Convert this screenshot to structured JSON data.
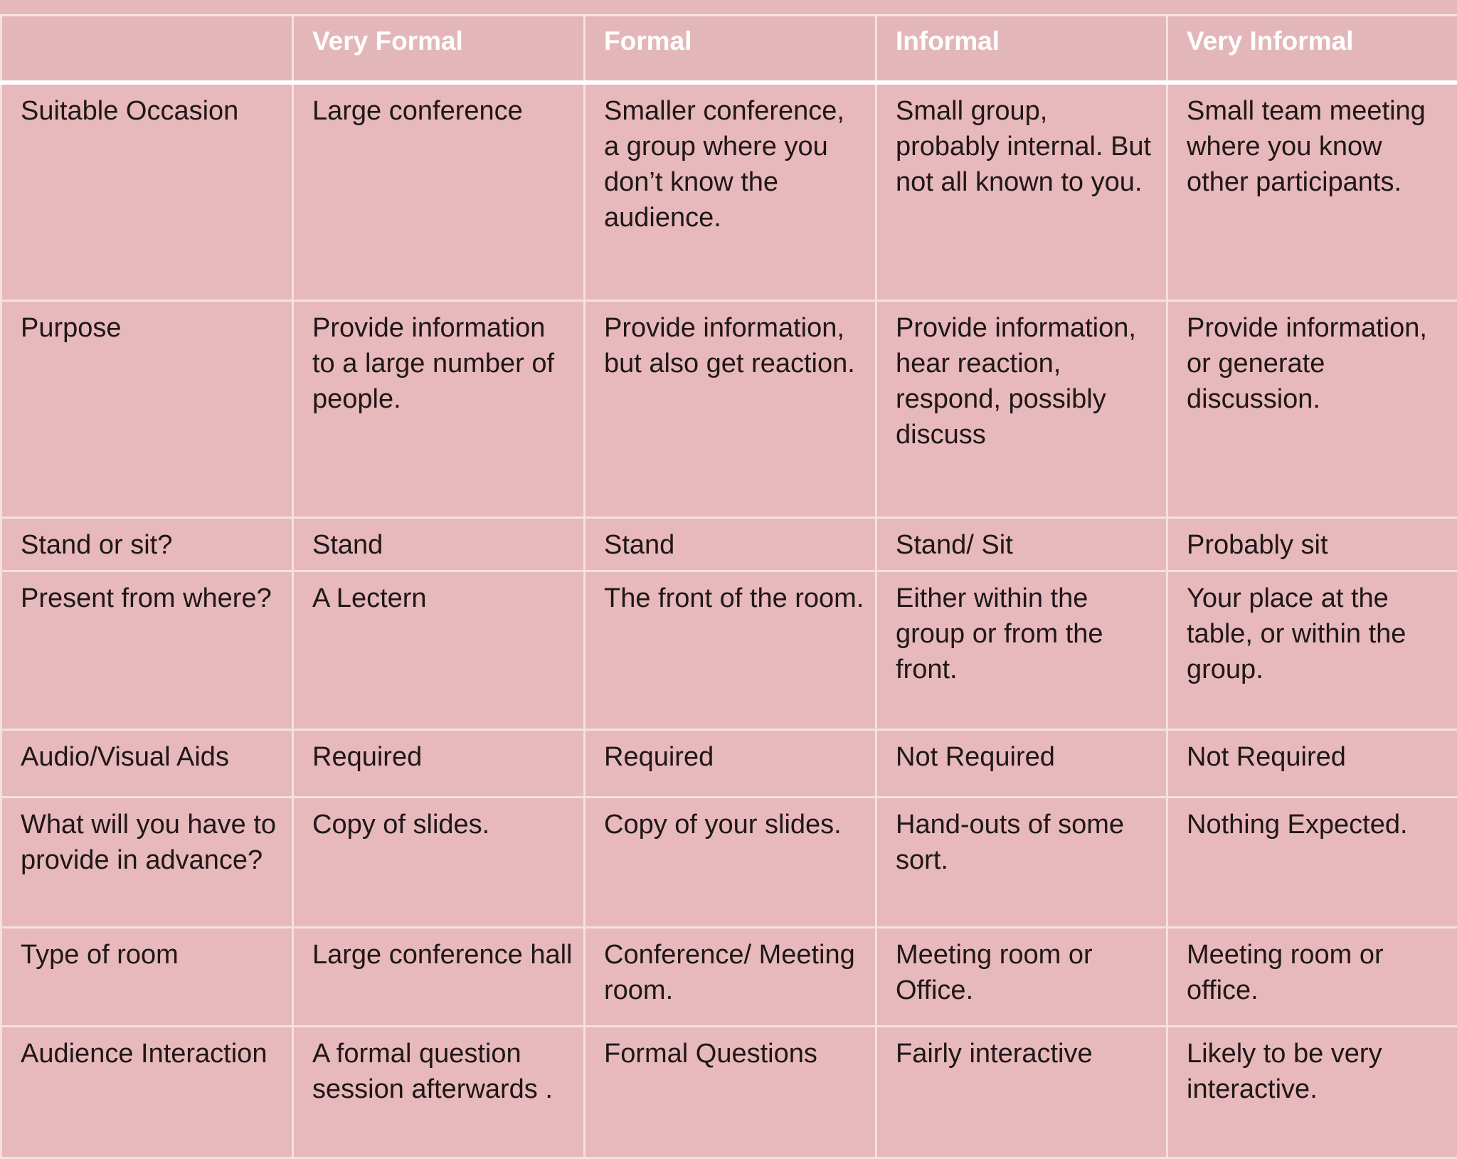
{
  "colors": {
    "background": "#e7b8bc",
    "grid_line": "#f4e1e3",
    "header_text": "#ffffff",
    "body_text": "#1f1718"
  },
  "table": {
    "headers": [
      "",
      "Very Formal",
      "Formal",
      "Informal",
      "Very Informal"
    ],
    "rows": [
      {
        "label": "Suitable Occasion",
        "cells": [
          "Large conference",
          "Smaller conference, a group where you don’t know the audience.",
          "Small group, probably internal. But not all known to you.",
          "Small team meeting where you know other participants."
        ]
      },
      {
        "label": "Purpose",
        "cells": [
          "Provide information to a large number of people.",
          "Provide information, but also get reaction.",
          "Provide information, hear reaction, respond, possibly discuss",
          "Provide information, or generate discussion."
        ]
      },
      {
        "label": "Stand or sit?",
        "cells": [
          "Stand",
          "Stand",
          "Stand/ Sit",
          "Probably sit"
        ]
      },
      {
        "label": "Present from where?",
        "cells": [
          "A Lectern",
          "The front of the room.",
          "Either within the group or from the front.",
          "Your place at the table, or within the group."
        ]
      },
      {
        "label": "Audio/Visual Aids",
        "cells": [
          "Required",
          "Required",
          "Not Required",
          "Not Required"
        ]
      },
      {
        "label": "What will you have to provide in advance?",
        "cells": [
          "Copy of slides.",
          "Copy of your slides.",
          "Hand-outs of some sort.",
          "Nothing Expected."
        ]
      },
      {
        "label": "Type of room",
        "cells": [
          "Large conference hall",
          "Conference/ Meeting room.",
          "Meeting room or Office.",
          "Meeting room or office."
        ]
      },
      {
        "label": "Audience Interaction",
        "cells": [
          "A formal question session afterwards .",
          "Formal Questions",
          "Fairly interactive",
          "Likely to be very interactive."
        ]
      }
    ]
  }
}
